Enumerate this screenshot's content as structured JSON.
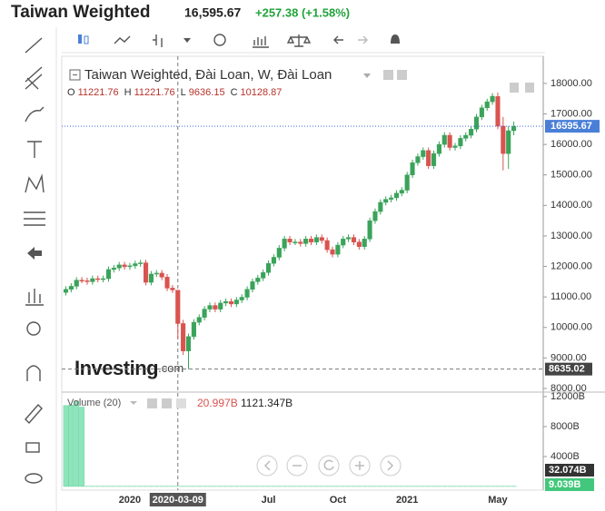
{
  "header": {
    "title": "Taiwan Weighted",
    "price": "16,595.67",
    "change": "+257.38 (+1.58%)"
  },
  "chart_data": {
    "type": "candlestick",
    "title": "Taiwan Weighted, Đài Loan, W, Đài Loan",
    "ohlc_labels": [
      "O",
      "H",
      "L",
      "C"
    ],
    "crosshair_index": 21,
    "crosshair_date": "2020-03-09",
    "watermark": [
      "Investing",
      ".com"
    ],
    "up_color": "#3aa35a",
    "down_color": "#d9534f",
    "categories": [
      null,
      null,
      null,
      null,
      null,
      null,
      null,
      null,
      null,
      null,
      null,
      null,
      "2020",
      null,
      null,
      null,
      null,
      null,
      null,
      null,
      null,
      null,
      null,
      null,
      null,
      null,
      null,
      null,
      null,
      null,
      null,
      null,
      null,
      null,
      null,
      null,
      null,
      null,
      "Jul",
      null,
      null,
      null,
      null,
      null,
      null,
      null,
      null,
      null,
      null,
      null,
      null,
      "Oct",
      null,
      null,
      null,
      null,
      null,
      null,
      null,
      null,
      null,
      null,
      null,
      null,
      "2021",
      null,
      null,
      null,
      null,
      null,
      null,
      null,
      null,
      null,
      null,
      null,
      null,
      null,
      null,
      null,
      null,
      "May",
      null,
      null,
      null
    ],
    "open": [
      11150,
      11250,
      11350,
      11550,
      11530,
      11500,
      11600,
      11580,
      11600,
      11900,
      11950,
      12050,
      11990,
      12020,
      12090,
      12118,
      11480,
      11750,
      11780,
      11650,
      11290,
      11221.76,
      10128.87,
      9230,
      9700,
      10170,
      10330,
      10600,
      10720,
      10600,
      10800,
      10850,
      10770,
      10900,
      10990,
      11250,
      11500,
      11620,
      11800,
      12100,
      12300,
      12600,
      12900,
      12800,
      12800,
      12750,
      12900,
      12800,
      12950,
      12850,
      12550,
      12400,
      12700,
      12900,
      12950,
      12800,
      12650,
      12900,
      13500,
      13800,
      14100,
      14200,
      14250,
      14400,
      14500,
      15000,
      15400,
      15600,
      15800,
      15300,
      15700,
      16000,
      16300,
      15900,
      15950,
      16200,
      16300,
      16500,
      16900,
      17200,
      17400,
      17570,
      16600,
      15700,
      16450
    ],
    "high": [
      11350,
      11450,
      11650,
      11650,
      11630,
      11700,
      11700,
      11700,
      12000,
      12050,
      12150,
      12150,
      12120,
      12190,
      12218,
      12218,
      11850,
      11880,
      11880,
      11750,
      11390,
      11221.76,
      10250,
      9800,
      10270,
      10430,
      10700,
      10820,
      10820,
      10900,
      10950,
      10950,
      11000,
      11090,
      11350,
      11600,
      11720,
      11900,
      12200,
      12400,
      12700,
      13000,
      13000,
      12900,
      12900,
      13000,
      13000,
      13050,
      13050,
      12950,
      12650,
      12800,
      13000,
      13050,
      13050,
      12900,
      13000,
      13600,
      13900,
      14200,
      14300,
      14350,
      14500,
      14600,
      15100,
      15500,
      15700,
      15900,
      15900,
      15800,
      16100,
      16400,
      16400,
      16050,
      16300,
      16400,
      16600,
      17000,
      17300,
      17500,
      17680,
      17700,
      16900,
      16600,
      16750
    ],
    "low": [
      11050,
      11150,
      11250,
      11450,
      11400,
      11400,
      11480,
      11480,
      11500,
      11800,
      11850,
      11890,
      11890,
      11920,
      11990,
      11380,
      11380,
      11650,
      11550,
      11190,
      11130,
      9636.15,
      9100,
      8635.02,
      9600,
      10070,
      10230,
      10500,
      10500,
      10500,
      10700,
      10670,
      10670,
      10800,
      10890,
      11150,
      11400,
      11520,
      11700,
      12000,
      12200,
      12500,
      12700,
      12700,
      12650,
      12650,
      12700,
      12700,
      12750,
      12450,
      12300,
      12300,
      12600,
      12800,
      12700,
      12550,
      12550,
      12800,
      13400,
      13700,
      14000,
      14100,
      14150,
      14300,
      14400,
      14900,
      15300,
      15500,
      15200,
      15200,
      15600,
      15900,
      15800,
      15800,
      15850,
      16100,
      16200,
      16400,
      16800,
      17100,
      17300,
      16500,
      15150,
      15200,
      16300
    ],
    "close": [
      11250,
      11350,
      11550,
      11530,
      11500,
      11600,
      11580,
      11600,
      11900,
      11950,
      12050,
      11990,
      12020,
      12090,
      12118,
      11480,
      11750,
      11780,
      11650,
      11290,
      11230,
      10128.87,
      9230,
      9700,
      10170,
      10330,
      10600,
      10720,
      10600,
      10800,
      10850,
      10770,
      10900,
      10990,
      11250,
      11500,
      11620,
      11800,
      12100,
      12300,
      12600,
      12900,
      12800,
      12800,
      12750,
      12900,
      12800,
      12950,
      12850,
      12550,
      12400,
      12700,
      12900,
      12950,
      12800,
      12650,
      12900,
      13500,
      13800,
      14100,
      14200,
      14250,
      14400,
      14500,
      15000,
      15400,
      15600,
      15800,
      15300,
      15700,
      16000,
      16300,
      15900,
      15950,
      16200,
      16300,
      16500,
      16900,
      17200,
      17400,
      17580,
      16600,
      15700,
      16450,
      16595.67
    ],
    "ylim": [
      7940,
      18890
    ],
    "yticks": [
      {
        "value": 8000,
        "label": "8000.00"
      },
      {
        "value": 9000,
        "label": "9000.00"
      },
      {
        "value": 10000,
        "label": "10000.00"
      },
      {
        "value": 11000,
        "label": "11000.00"
      },
      {
        "value": 12000,
        "label": "12000.00"
      },
      {
        "value": 13000,
        "label": "13000.00"
      },
      {
        "value": 14000,
        "label": "14000.00"
      },
      {
        "value": 15000,
        "label": "15000.00"
      },
      {
        "value": 16000,
        "label": "16000.00"
      },
      {
        "value": 17000,
        "label": "17000.00"
      },
      {
        "value": 18000,
        "label": "18000.00"
      }
    ],
    "volume": {
      "name": "Volume (20)",
      "color": "#8de6bb",
      "readouts": [
        "20.997B",
        "1121.347B"
      ],
      "axis_labels": [
        "32.074B",
        "9.039B"
      ],
      "ylim": [
        0,
        12600
      ],
      "yticks": [
        {
          "value": 4000,
          "label": "4000B"
        },
        {
          "value": 8000,
          "label": "8000B"
        },
        {
          "value": 12000,
          "label": "12000B"
        }
      ],
      "values": [
        10800,
        10900,
        11400,
        10600,
        30,
        30,
        30,
        30,
        30,
        30,
        30,
        30,
        30,
        30,
        30,
        30,
        30,
        30,
        30,
        30,
        30,
        30,
        30,
        30,
        30,
        30,
        30,
        30,
        30,
        30,
        30,
        30,
        30,
        30,
        30,
        30,
        30,
        30,
        30,
        30,
        30,
        30,
        30,
        30,
        30,
        30,
        30,
        30,
        30,
        30,
        30,
        30,
        30,
        30,
        30,
        30,
        30,
        30,
        30,
        30,
        30,
        30,
        30,
        30,
        30,
        30,
        30,
        30,
        30,
        30,
        30,
        30,
        30,
        30,
        30,
        30,
        30,
        30,
        30,
        30,
        30,
        30,
        30,
        30,
        30
      ]
    }
  }
}
